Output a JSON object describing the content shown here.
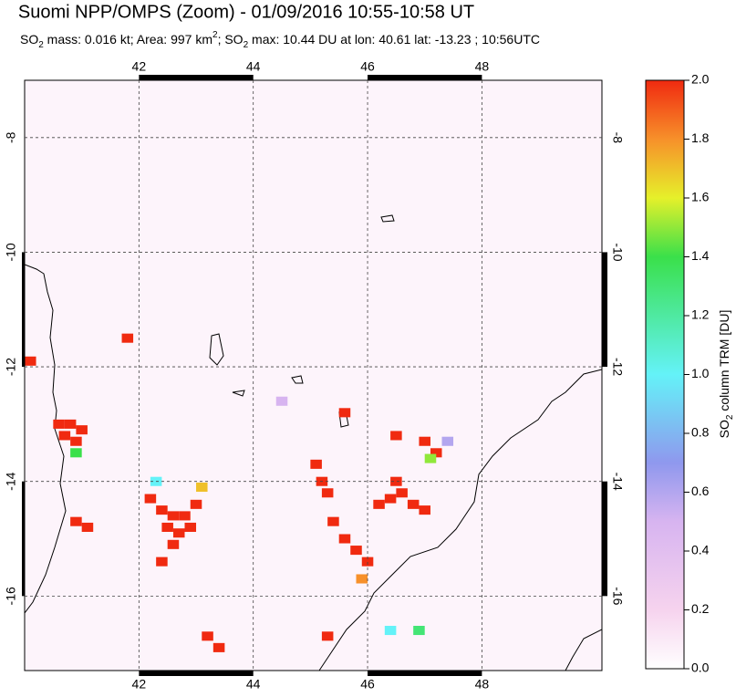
{
  "chart_data": {
    "type": "map",
    "title": "Suomi NPP/OMPS (Zoom) - 01/09/2016 10:55-10:58 UT",
    "subtitle": [
      {
        "text": "SO",
        "style": "normal"
      },
      {
        "text": "2",
        "style": "sub"
      },
      {
        "text": " mass: 0.016 kt; Area: 997 km",
        "style": "normal"
      },
      {
        "text": "2",
        "style": "sup"
      },
      {
        "text": "; SO",
        "style": "normal"
      },
      {
        "text": "2",
        "style": "sub"
      },
      {
        "text": " max: 10.44 DU at lon: 40.61 lat: -13.23 ; 10:56UTC",
        "style": "normal"
      }
    ],
    "xlim": [
      40,
      50.1
    ],
    "ylim": [
      -17.3,
      -7
    ],
    "xticks": [
      42,
      44,
      46,
      48
    ],
    "yticks": [
      -8,
      -10,
      -12,
      -14,
      -16
    ],
    "grid": true,
    "pixels": {
      "lon": [
        40.1,
        40.6,
        40.8,
        41.0,
        40.7,
        40.9,
        40.9,
        41.1,
        42.2,
        42.4,
        42.6,
        42.8,
        43.0,
        42.5,
        42.7,
        42.9,
        42.6,
        42.4,
        43.2,
        43.4,
        41.8,
        45.6,
        45.1,
        45.2,
        45.3,
        45.4,
        45.6,
        45.8,
        46.0,
        46.2,
        46.4,
        46.6,
        46.8,
        47.0,
        46.5,
        46.5,
        47.0,
        47.2,
        45.3,
        47.1,
        43.1,
        46.4,
        46.9,
        40.9,
        42.3,
        47.4,
        44.5,
        45.9
      ],
      "lat": [
        -11.9,
        -13.0,
        -13.0,
        -13.1,
        -13.2,
        -13.3,
        -14.7,
        -14.8,
        -14.3,
        -14.5,
        -14.6,
        -14.6,
        -14.4,
        -14.8,
        -14.9,
        -14.8,
        -15.1,
        -15.4,
        -16.7,
        -16.9,
        -11.5,
        -12.8,
        -13.7,
        -14.0,
        -14.2,
        -14.7,
        -15.0,
        -15.2,
        -15.4,
        -14.4,
        -14.3,
        -14.2,
        -14.4,
        -14.5,
        -14.0,
        -13.2,
        -13.3,
        -13.5,
        -16.7,
        -13.6,
        -14.1,
        -16.6,
        -16.6,
        -13.5,
        -14.0,
        -13.3,
        -12.6,
        -15.7
      ],
      "values": [
        2.0,
        2.0,
        2.0,
        2.0,
        2.0,
        2.0,
        2.0,
        2.0,
        2.0,
        2.0,
        2.0,
        2.0,
        2.0,
        2.0,
        2.0,
        2.0,
        2.0,
        2.0,
        2.0,
        2.0,
        2.0,
        2.0,
        2.0,
        2.0,
        2.0,
        2.0,
        2.0,
        2.0,
        2.0,
        2.0,
        2.0,
        2.0,
        2.0,
        2.0,
        2.0,
        2.0,
        2.0,
        2.0,
        2.0,
        1.5,
        1.7,
        1.0,
        1.3,
        1.4,
        1.0,
        0.6,
        0.5,
        1.8
      ]
    },
    "colorbar": {
      "label": [
        {
          "text": "SO",
          "style": "normal"
        },
        {
          "text": "2",
          "style": "sub"
        },
        {
          "text": " column TRM [DU]",
          "style": "normal"
        }
      ],
      "lim": [
        0,
        2
      ],
      "ticks": [
        {
          "value": 0,
          "label": "0.0"
        },
        {
          "value": 0.2,
          "label": "0.2"
        },
        {
          "value": 0.4,
          "label": "0.4"
        },
        {
          "value": 0.6,
          "label": "0.6"
        },
        {
          "value": 0.8,
          "label": "0.8"
        },
        {
          "value": 1,
          "label": "1.0"
        },
        {
          "value": 1.2,
          "label": "1.2"
        },
        {
          "value": 1.4,
          "label": "1.4"
        },
        {
          "value": 1.6,
          "label": "1.6"
        },
        {
          "value": 1.8,
          "label": "1.8"
        },
        {
          "value": 2,
          "label": "2.0"
        }
      ]
    }
  }
}
